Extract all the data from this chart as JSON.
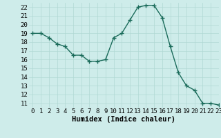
{
  "x": [
    0,
    1,
    2,
    3,
    4,
    5,
    6,
    7,
    8,
    9,
    10,
    11,
    12,
    13,
    14,
    15,
    16,
    17,
    18,
    19,
    20,
    21,
    22,
    23
  ],
  "y": [
    19.0,
    19.0,
    18.5,
    17.8,
    17.5,
    16.5,
    16.5,
    15.8,
    15.8,
    16.0,
    18.5,
    19.0,
    20.5,
    22.0,
    22.2,
    22.2,
    20.8,
    17.5,
    14.5,
    13.0,
    12.5,
    11.0,
    11.0,
    10.8
  ],
  "xlabel": "Humidex (Indice chaleur)",
  "ylim": [
    10.5,
    22.5
  ],
  "xlim": [
    -0.5,
    23
  ],
  "yticks": [
    11,
    12,
    13,
    14,
    15,
    16,
    17,
    18,
    19,
    20,
    21,
    22
  ],
  "xticks": [
    0,
    1,
    2,
    3,
    4,
    5,
    6,
    7,
    8,
    9,
    10,
    11,
    12,
    13,
    14,
    15,
    16,
    17,
    18,
    19,
    20,
    21,
    22,
    23
  ],
  "line_color": "#1a6b5a",
  "marker_color": "#1a6b5a",
  "bg_color": "#ceecea",
  "grid_color": "#b0d8d4",
  "tick_fontsize": 6.5,
  "xlabel_fontsize": 7.5
}
